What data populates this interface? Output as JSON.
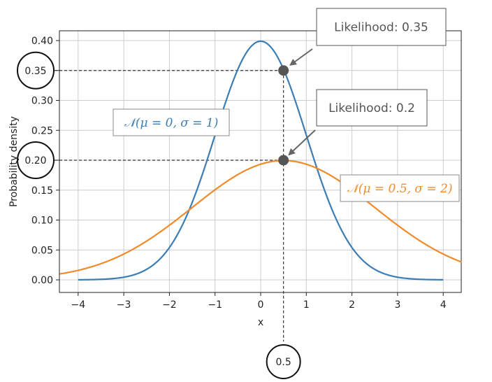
{
  "chart_data": {
    "type": "line",
    "title": "",
    "xlabel": "x",
    "ylabel": "Probability density",
    "xlim": [
      -4.4,
      4.4
    ],
    "ylim": [
      -0.02,
      0.42
    ],
    "grid": true,
    "x_ticks": [
      -4,
      -3,
      -2,
      -1,
      0,
      1,
      2,
      3,
      4
    ],
    "x_tick_labels": [
      "−4",
      "−3",
      "−2",
      "−1",
      "0",
      "1",
      "2",
      "3",
      "4"
    ],
    "y_ticks": [
      0.0,
      0.05,
      0.1,
      0.15,
      0.2,
      0.25,
      0.3,
      0.35,
      0.4
    ],
    "y_tick_labels": [
      "0.00",
      "0.05",
      "0.10",
      "0.15",
      "0.20",
      "0.25",
      "0.30",
      "0.35",
      "0.40"
    ],
    "series": [
      {
        "name": "𝒩(μ = 0, σ = 1)",
        "distribution": "normal",
        "mu": 0,
        "sigma": 1,
        "x_range": [
          -4,
          4
        ],
        "color": "#3b7db5"
      },
      {
        "name": "𝒩(μ = 0.5, σ = 2)",
        "distribution": "normal",
        "mu": 0.5,
        "sigma": 2,
        "x_range": [
          -4.4,
          4.4
        ],
        "color": "#f08a2a"
      }
    ],
    "highlight_x": 0.5,
    "highlight_x_label": "0.5",
    "points": [
      {
        "x": 0.5,
        "y": 0.35,
        "y_label": "0.35",
        "callout": "Likelihood: 0.35"
      },
      {
        "x": 0.5,
        "y": 0.2,
        "y_label": "0.20",
        "callout": "Likelihood: 0.2"
      }
    ]
  }
}
